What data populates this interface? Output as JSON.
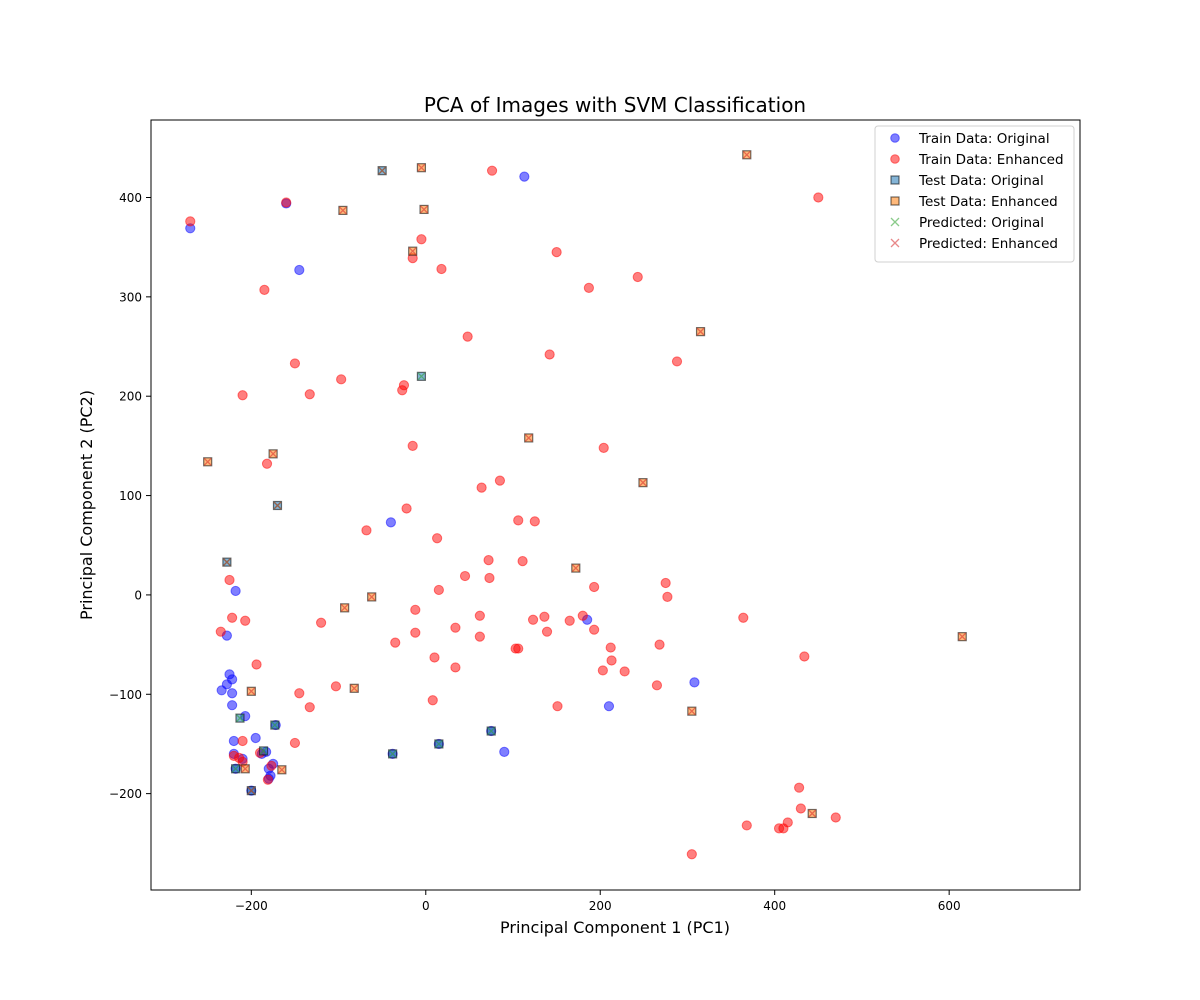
{
  "chart_data": {
    "type": "scatter",
    "title": "PCA of Images with SVM Classification",
    "xlabel": "Principal Component 1 (PC1)",
    "ylabel": "Principal Component 2 (PC2)",
    "xlim": [
      -315,
      750
    ],
    "ylim": [
      -297,
      478
    ],
    "xticks": [
      -200,
      0,
      200,
      400,
      600
    ],
    "yticks": [
      -200,
      -100,
      0,
      100,
      200,
      300,
      400
    ],
    "grid": false,
    "legend_position": "top-right",
    "colors": {
      "train_original": "#0000ff",
      "train_enhanced": "#ff0000",
      "test_original": "#1f77b4",
      "test_enhanced": "#ff7f0e",
      "pred_original": "#2ca02c",
      "pred_enhanced": "#d62728"
    },
    "series": [
      {
        "name": "Train Data: Original",
        "marker": "circle",
        "color": "#0000ff",
        "points": [
          [
            -270,
            369
          ],
          [
            113,
            421
          ],
          [
            -145,
            327
          ],
          [
            -160,
            394
          ],
          [
            -40,
            73
          ],
          [
            -218,
            4
          ],
          [
            185,
            -25
          ],
          [
            -228,
            -41
          ],
          [
            -225,
            -80
          ],
          [
            -222,
            -85
          ],
          [
            -228,
            -90
          ],
          [
            -234,
            -96
          ],
          [
            -222,
            -99
          ],
          [
            -207,
            -122
          ],
          [
            -222,
            -111
          ],
          [
            -220,
            -147
          ],
          [
            -195,
            -144
          ],
          [
            -220,
            -160
          ],
          [
            -188,
            -160
          ],
          [
            -210,
            -165
          ],
          [
            -175,
            -170
          ],
          [
            -180,
            -175
          ],
          [
            -178,
            -182
          ],
          [
            -180,
            -185
          ],
          [
            -200,
            -197
          ],
          [
            308,
            -88
          ],
          [
            210,
            -112
          ],
          [
            90,
            -158
          ],
          [
            15,
            -150
          ],
          [
            75,
            -137
          ],
          [
            -172,
            -131
          ],
          [
            -183,
            -158
          ],
          [
            -38,
            -160
          ],
          [
            -218,
            -175
          ]
        ]
      },
      {
        "name": "Train Data: Enhanced",
        "marker": "circle",
        "color": "#ff0000",
        "points": [
          [
            -270,
            376
          ],
          [
            -160,
            395
          ],
          [
            -185,
            307
          ],
          [
            76,
            427
          ],
          [
            -5,
            358
          ],
          [
            -15,
            339
          ],
          [
            18,
            328
          ],
          [
            150,
            345
          ],
          [
            187,
            309
          ],
          [
            243,
            320
          ],
          [
            450,
            400
          ],
          [
            -150,
            233
          ],
          [
            -97,
            217
          ],
          [
            -133,
            202
          ],
          [
            -210,
            201
          ],
          [
            -25,
            211
          ],
          [
            -27,
            206
          ],
          [
            48,
            260
          ],
          [
            142,
            242
          ],
          [
            288,
            235
          ],
          [
            -182,
            132
          ],
          [
            -15,
            150
          ],
          [
            204,
            148
          ],
          [
            85,
            115
          ],
          [
            64,
            108
          ],
          [
            -22,
            87
          ],
          [
            -68,
            65
          ],
          [
            13,
            57
          ],
          [
            106,
            75
          ],
          [
            125,
            74
          ],
          [
            72,
            35
          ],
          [
            111,
            34
          ],
          [
            45,
            19
          ],
          [
            73,
            17
          ],
          [
            15,
            5
          ],
          [
            193,
            8
          ],
          [
            275,
            12
          ],
          [
            277,
            -2
          ],
          [
            -225,
            15
          ],
          [
            -222,
            -23
          ],
          [
            -207,
            -26
          ],
          [
            -235,
            -37
          ],
          [
            -120,
            -28
          ],
          [
            -12,
            -15
          ],
          [
            62,
            -21
          ],
          [
            136,
            -22
          ],
          [
            123,
            -25
          ],
          [
            165,
            -26
          ],
          [
            180,
            -21
          ],
          [
            193,
            -35
          ],
          [
            139,
            -37
          ],
          [
            34,
            -33
          ],
          [
            -12,
            -38
          ],
          [
            -35,
            -48
          ],
          [
            62,
            -42
          ],
          [
            103,
            -54
          ],
          [
            106,
            -54
          ],
          [
            212,
            -53
          ],
          [
            268,
            -50
          ],
          [
            364,
            -23
          ],
          [
            434,
            -62
          ],
          [
            213,
            -66
          ],
          [
            203,
            -76
          ],
          [
            228,
            -77
          ],
          [
            10,
            -63
          ],
          [
            34,
            -73
          ],
          [
            -194,
            -70
          ],
          [
            -103,
            -92
          ],
          [
            -145,
            -99
          ],
          [
            -133,
            -113
          ],
          [
            8,
            -106
          ],
          [
            151,
            -112
          ],
          [
            265,
            -91
          ],
          [
            -150,
            -149
          ],
          [
            -210,
            -147
          ],
          [
            -190,
            -159
          ],
          [
            -220,
            -162
          ],
          [
            -214,
            -164
          ],
          [
            -210,
            -168
          ],
          [
            -177,
            -172
          ],
          [
            -181,
            -186
          ],
          [
            428,
            -194
          ],
          [
            430,
            -215
          ],
          [
            470,
            -224
          ],
          [
            415,
            -229
          ],
          [
            368,
            -232
          ],
          [
            405,
            -235
          ],
          [
            410,
            -235
          ],
          [
            305,
            -261
          ]
        ]
      },
      {
        "name": "Test Data: Original",
        "marker": "square",
        "color": "#1f77b4",
        "points": [
          [
            -50,
            427
          ],
          [
            -5,
            220
          ],
          [
            -170,
            90
          ],
          [
            -228,
            33
          ],
          [
            -213,
            -124
          ],
          [
            -173,
            -131
          ],
          [
            -186,
            -157
          ],
          [
            -38,
            -160
          ],
          [
            15,
            -150
          ],
          [
            75,
            -137
          ],
          [
            -218,
            -175
          ],
          [
            -200,
            -197
          ]
        ]
      },
      {
        "name": "Test Data: Enhanced",
        "marker": "square",
        "color": "#ff7f0e",
        "points": [
          [
            -5,
            430
          ],
          [
            368,
            443
          ],
          [
            -95,
            387
          ],
          [
            -2,
            388
          ],
          [
            -15,
            346
          ],
          [
            315,
            265
          ],
          [
            118,
            158
          ],
          [
            -250,
            134
          ],
          [
            -175,
            142
          ],
          [
            249,
            113
          ],
          [
            172,
            27
          ],
          [
            -62,
            -2
          ],
          [
            -93,
            -13
          ],
          [
            615,
            -42
          ],
          [
            -82,
            -94
          ],
          [
            -200,
            -97
          ],
          [
            305,
            -117
          ],
          [
            -165,
            -176
          ],
          [
            -207,
            -175
          ],
          [
            443,
            -220
          ]
        ]
      },
      {
        "name": "Predicted: Original",
        "marker": "x",
        "color": "#2ca02c",
        "points": [
          [
            -50,
            427
          ],
          [
            -5,
            220
          ],
          [
            -170,
            90
          ],
          [
            -228,
            33
          ],
          [
            -213,
            -124
          ],
          [
            -173,
            -131
          ],
          [
            -186,
            -157
          ],
          [
            -38,
            -160
          ],
          [
            15,
            -150
          ],
          [
            75,
            -137
          ],
          [
            -218,
            -175
          ],
          [
            -200,
            -197
          ]
        ]
      },
      {
        "name": "Predicted: Enhanced",
        "marker": "x",
        "color": "#d62728",
        "points": [
          [
            -5,
            430
          ],
          [
            368,
            443
          ],
          [
            -95,
            387
          ],
          [
            -2,
            388
          ],
          [
            -15,
            346
          ],
          [
            315,
            265
          ],
          [
            118,
            158
          ],
          [
            -250,
            134
          ],
          [
            -175,
            142
          ],
          [
            249,
            113
          ],
          [
            172,
            27
          ],
          [
            -62,
            -2
          ],
          [
            -93,
            -13
          ],
          [
            615,
            -42
          ],
          [
            -82,
            -94
          ],
          [
            -200,
            -97
          ],
          [
            305,
            -117
          ],
          [
            -165,
            -176
          ],
          [
            -207,
            -175
          ],
          [
            443,
            -220
          ],
          [
            -228,
            33
          ],
          [
            -170,
            90
          ],
          [
            -200,
            -197
          ],
          [
            -50,
            427
          ]
        ]
      }
    ]
  }
}
